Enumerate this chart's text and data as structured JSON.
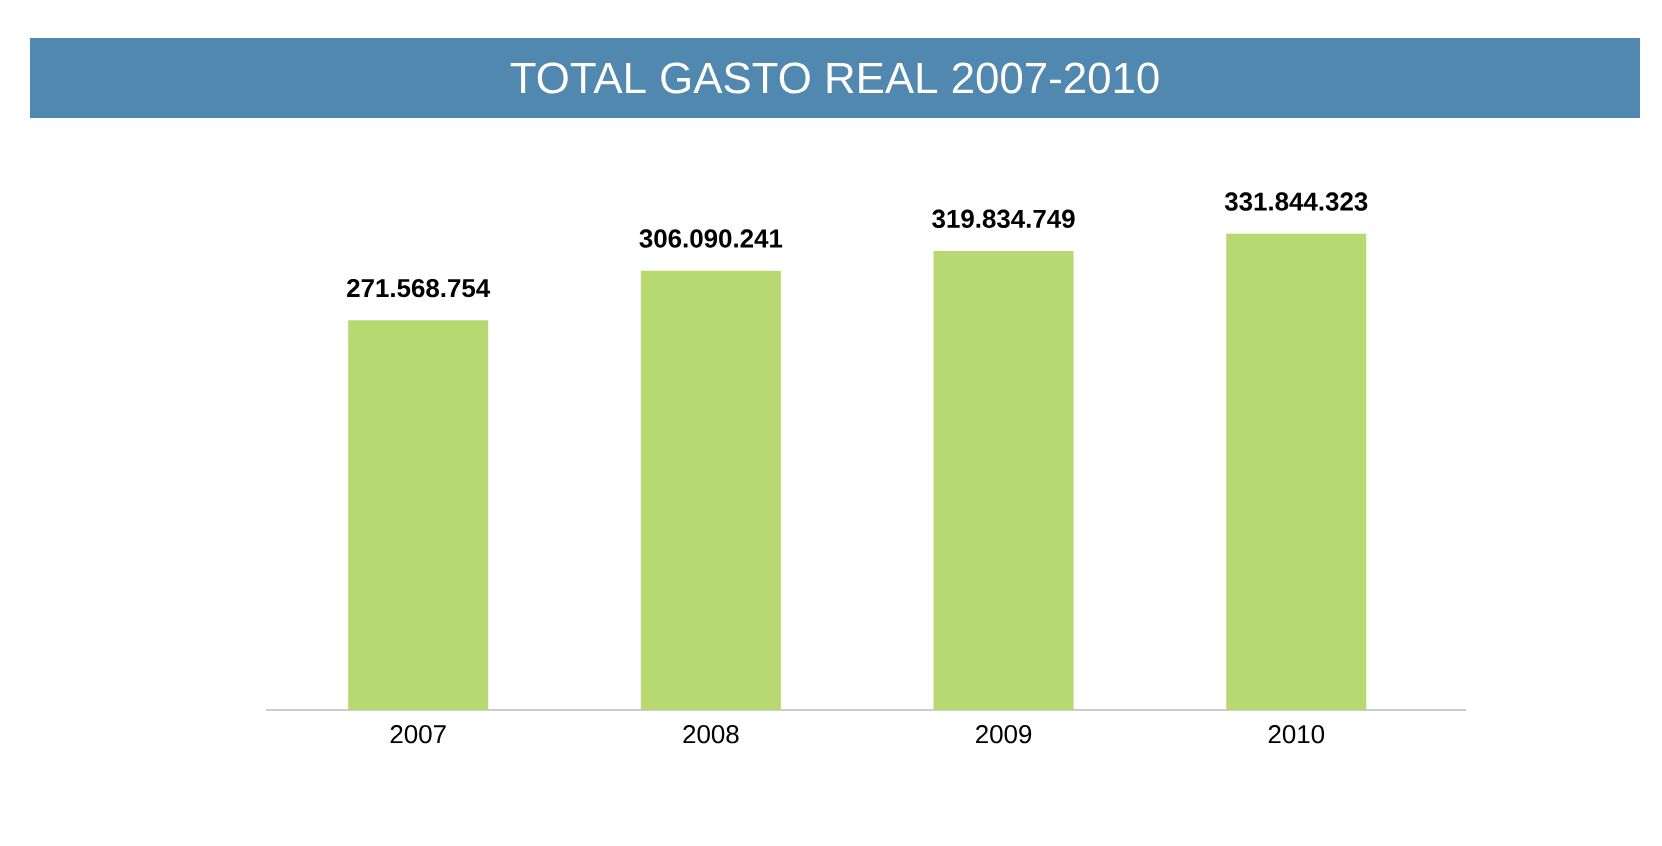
{
  "chart_data": {
    "type": "bar",
    "title": "TOTAL GASTO REAL 2007-2010",
    "categories": [
      "2007",
      "2008",
      "2009",
      "2010"
    ],
    "values": [
      271568754,
      306090241,
      319834749,
      331844323
    ],
    "value_labels": [
      "271.568.754",
      "306.090.241",
      "319.834.749",
      "331.844.323"
    ],
    "color": "#b8d872"
  }
}
